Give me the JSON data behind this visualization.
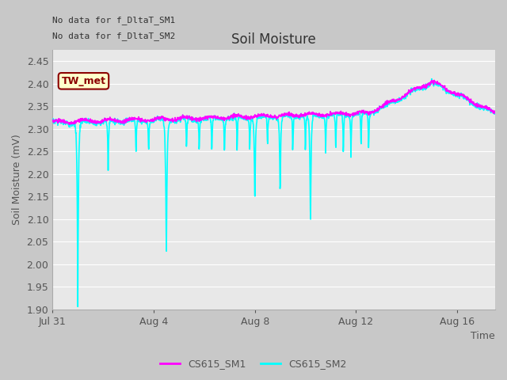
{
  "title": "Soil Moisture",
  "ylabel": "Soil Moisture (mV)",
  "xlabel": "Time",
  "ylim": [
    1.9,
    2.475
  ],
  "yticks": [
    1.9,
    1.95,
    2.0,
    2.05,
    2.1,
    2.15,
    2.2,
    2.25,
    2.3,
    2.35,
    2.4,
    2.45
  ],
  "xtick_labels": [
    "Jul 31",
    "Aug 4",
    "Aug 8",
    "Aug 12",
    "Aug 16"
  ],
  "xtick_positions": [
    0,
    4,
    8,
    12,
    16
  ],
  "no_data_text_1": "No data for f_DltaT_SM1",
  "no_data_text_2": "No data for f_DltaT_SM2",
  "tw_met_label": "TW_met",
  "tw_met_bg": "#FFFFCC",
  "tw_met_border": "#8B0000",
  "tw_met_text_color": "#8B0000",
  "legend_labels": [
    "CS615_SM1",
    "CS615_SM2"
  ],
  "sm1_color": "#FF00FF",
  "sm2_color": "#00FFFF",
  "fig_bg_color": "#C8C8C8",
  "plot_bg_color": "#E8E8E8",
  "grid_color": "#FFFFFF",
  "line_width": 1.2,
  "title_fontsize": 12,
  "axis_fontsize": 9,
  "tick_fontsize": 9,
  "n_days": 17.5
}
